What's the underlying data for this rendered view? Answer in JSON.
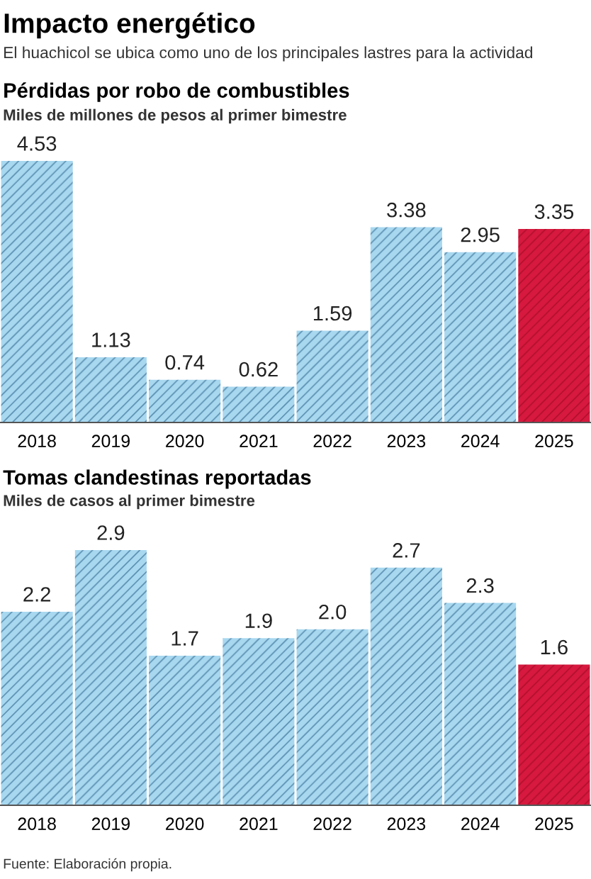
{
  "chart_data": [
    {
      "type": "bar",
      "title": "Pérdidas por robo de combustibles",
      "subtitle": "Miles de millones de pesos al primer bimestre",
      "annotations": [
        "Impacto energético",
        "El huachicol se ubica como uno de los principales lastres para la actividad"
      ],
      "categories": [
        "2018",
        "2019",
        "2020",
        "2021",
        "2022",
        "2023",
        "2024",
        "2025"
      ],
      "values": [
        4.53,
        1.13,
        0.74,
        0.62,
        1.59,
        3.38,
        2.95,
        3.35
      ],
      "colors": [
        "#a8d8f0",
        "#a8d8f0",
        "#a8d8f0",
        "#a8d8f0",
        "#a8d8f0",
        "#a8d8f0",
        "#a8d8f0",
        "#d7193f"
      ],
      "data_labels": true
    },
    {
      "type": "bar",
      "title": "Tomas clandestinas reportadas",
      "subtitle": "Miles de casos al primer bimestre",
      "annotations": [
        "Fuente: Elaboración propia."
      ],
      "categories": [
        "2018",
        "2019",
        "2020",
        "2021",
        "2022",
        "2023",
        "2024",
        "2025"
      ],
      "values": [
        2.2,
        2.9,
        1.7,
        1.9,
        2.0,
        2.7,
        2.3,
        1.6
      ],
      "value_labels": [
        "2.2",
        "2.9",
        "1.7",
        "1.9",
        "2.0",
        "2.7",
        "2.3",
        "1.6"
      ],
      "colors": [
        "#a8d8f0",
        "#a8d8f0",
        "#a8d8f0",
        "#a8d8f0",
        "#a8d8f0",
        "#a8d8f0",
        "#a8d8f0",
        "#d7193f"
      ]
    }
  ]
}
